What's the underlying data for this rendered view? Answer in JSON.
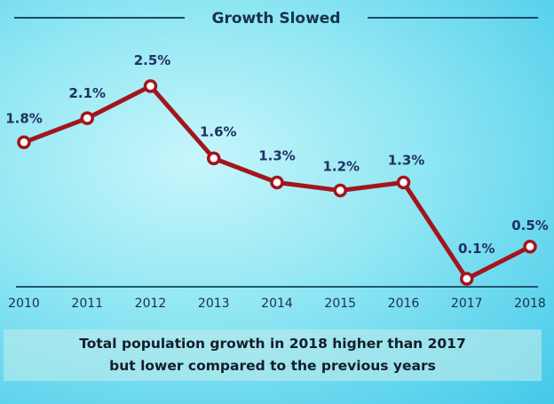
{
  "chart_data": {
    "type": "line",
    "title": "Growth Slowed",
    "categories": [
      "2010",
      "2011",
      "2012",
      "2013",
      "2014",
      "2015",
      "2016",
      "2017",
      "2018"
    ],
    "values": [
      1.8,
      2.1,
      2.5,
      1.6,
      1.3,
      1.2,
      1.3,
      0.1,
      0.5
    ],
    "data_labels": [
      "1.8%",
      "2.1%",
      "2.5%",
      "1.6%",
      "1.3%",
      "1.2%",
      "1.3%",
      "0.1%",
      "0.5%"
    ],
    "xlabel": "",
    "ylabel": "",
    "ylim": [
      0,
      2.8
    ],
    "grid": false,
    "line_color": "#a3151b",
    "annotation_line1": "Total population growth in 2018 higher than 2017",
    "annotation_line2": "but lower compared to the previous years"
  }
}
